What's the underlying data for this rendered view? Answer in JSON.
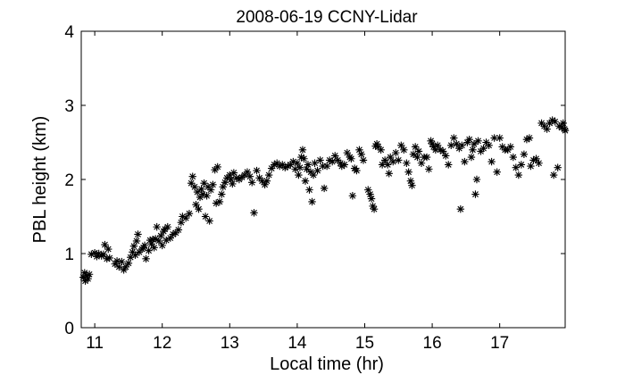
{
  "chart_data": {
    "type": "scatter",
    "title": "2008-06-19 CCNY-Lidar",
    "xlabel": "Local time (hr)",
    "ylabel": "PBL height (km)",
    "xlim": [
      10.8,
      17.97
    ],
    "ylim": [
      0,
      4
    ],
    "xticks": [
      11,
      12,
      13,
      14,
      15,
      16,
      17
    ],
    "yticks": [
      0,
      1,
      2,
      3,
      4
    ],
    "grid": false,
    "marker": "asterisk",
    "marker_color": "#000000",
    "points": [
      [
        10.83,
        0.68
      ],
      [
        10.85,
        0.74
      ],
      [
        10.86,
        0.63
      ],
      [
        10.88,
        0.7
      ],
      [
        10.9,
        0.66
      ],
      [
        10.92,
        0.72
      ],
      [
        10.95,
        0.99
      ],
      [
        11.0,
        1.01
      ],
      [
        11.03,
        0.96
      ],
      [
        11.06,
        1.0
      ],
      [
        11.1,
        0.97
      ],
      [
        11.13,
        0.99
      ],
      [
        11.15,
        1.12
      ],
      [
        11.18,
        0.93
      ],
      [
        11.2,
        1.06
      ],
      [
        11.22,
        0.94
      ],
      [
        11.3,
        0.86
      ],
      [
        11.33,
        0.9
      ],
      [
        11.36,
        0.82
      ],
      [
        11.4,
        0.89
      ],
      [
        11.43,
        0.78
      ],
      [
        11.46,
        0.82
      ],
      [
        11.5,
        0.87
      ],
      [
        11.53,
        0.95
      ],
      [
        11.56,
        1.02
      ],
      [
        11.58,
        1.1
      ],
      [
        11.6,
        0.98
      ],
      [
        11.62,
        1.17
      ],
      [
        11.64,
        1.26
      ],
      [
        11.66,
        1.02
      ],
      [
        11.7,
        1.06
      ],
      [
        11.72,
        1.08
      ],
      [
        11.74,
        1.11
      ],
      [
        11.76,
        0.93
      ],
      [
        11.8,
        1.04
      ],
      [
        11.82,
        1.18
      ],
      [
        11.84,
        1.13
      ],
      [
        11.86,
        1.19
      ],
      [
        11.88,
        1.08
      ],
      [
        11.9,
        1.2
      ],
      [
        11.92,
        1.36
      ],
      [
        11.95,
        1.17
      ],
      [
        11.98,
        1.24
      ],
      [
        12.0,
        1.11
      ],
      [
        12.02,
        1.3
      ],
      [
        12.04,
        1.33
      ],
      [
        12.06,
        1.18
      ],
      [
        12.08,
        1.36
      ],
      [
        12.12,
        1.21
      ],
      [
        12.16,
        1.26
      ],
      [
        12.2,
        1.28
      ],
      [
        12.24,
        1.32
      ],
      [
        12.28,
        1.42
      ],
      [
        12.3,
        1.5
      ],
      [
        12.35,
        1.48
      ],
      [
        12.4,
        1.54
      ],
      [
        12.43,
        1.95
      ],
      [
        12.45,
        2.04
      ],
      [
        12.48,
        1.9
      ],
      [
        12.5,
        1.66
      ],
      [
        12.52,
        1.83
      ],
      [
        12.54,
        1.6
      ],
      [
        12.56,
        1.76
      ],
      [
        12.58,
        1.87
      ],
      [
        12.6,
        1.8
      ],
      [
        12.62,
        1.95
      ],
      [
        12.64,
        1.5
      ],
      [
        12.66,
        1.78
      ],
      [
        12.68,
        1.9
      ],
      [
        12.7,
        1.44
      ],
      [
        12.72,
        1.86
      ],
      [
        12.75,
        1.93
      ],
      [
        12.78,
        2.13
      ],
      [
        12.8,
        1.68
      ],
      [
        12.82,
        2.17
      ],
      [
        12.85,
        1.7
      ],
      [
        12.88,
        1.8
      ],
      [
        12.9,
        1.9
      ],
      [
        12.93,
        1.96
      ],
      [
        12.96,
        2.02
      ],
      [
        13.0,
        2.06
      ],
      [
        13.02,
        2.0
      ],
      [
        13.04,
        1.94
      ],
      [
        13.06,
        2.09
      ],
      [
        13.1,
        2.02
      ],
      [
        13.14,
        2.0
      ],
      [
        13.18,
        2.03
      ],
      [
        13.22,
        2.06
      ],
      [
        13.26,
        2.1
      ],
      [
        13.3,
        2.04
      ],
      [
        13.33,
        1.96
      ],
      [
        13.36,
        1.55
      ],
      [
        13.4,
        2.12
      ],
      [
        13.44,
        2.02
      ],
      [
        13.48,
        1.98
      ],
      [
        13.52,
        1.93
      ],
      [
        13.55,
        1.98
      ],
      [
        13.58,
        2.06
      ],
      [
        13.62,
        2.15
      ],
      [
        13.66,
        2.2
      ],
      [
        13.7,
        2.22
      ],
      [
        13.74,
        2.18
      ],
      [
        13.78,
        2.2
      ],
      [
        13.82,
        2.16
      ],
      [
        13.86,
        2.18
      ],
      [
        13.9,
        2.2
      ],
      [
        13.94,
        2.24
      ],
      [
        13.97,
        2.14
      ],
      [
        14.0,
        2.22
      ],
      [
        14.02,
        2.06
      ],
      [
        14.04,
        2.16
      ],
      [
        14.06,
        2.3
      ],
      [
        14.08,
        2.4
      ],
      [
        14.1,
        2.28
      ],
      [
        14.12,
        1.98
      ],
      [
        14.14,
        2.14
      ],
      [
        14.16,
        2.2
      ],
      [
        14.18,
        1.86
      ],
      [
        14.2,
        2.1
      ],
      [
        14.22,
        1.7
      ],
      [
        14.24,
        2.06
      ],
      [
        14.26,
        2.22
      ],
      [
        14.3,
        2.12
      ],
      [
        14.34,
        2.26
      ],
      [
        14.38,
        2.18
      ],
      [
        14.4,
        1.88
      ],
      [
        14.44,
        2.18
      ],
      [
        14.48,
        2.26
      ],
      [
        14.52,
        2.24
      ],
      [
        14.56,
        2.32
      ],
      [
        14.6,
        2.26
      ],
      [
        14.64,
        2.22
      ],
      [
        14.66,
        2.18
      ],
      [
        14.7,
        2.2
      ],
      [
        14.74,
        2.36
      ],
      [
        14.78,
        2.3
      ],
      [
        14.8,
        2.28
      ],
      [
        14.82,
        1.78
      ],
      [
        14.85,
        2.15
      ],
      [
        14.88,
        2.12
      ],
      [
        14.92,
        2.4
      ],
      [
        14.95,
        2.34
      ],
      [
        14.98,
        2.26
      ],
      [
        15.05,
        1.86
      ],
      [
        15.08,
        1.8
      ],
      [
        15.1,
        1.74
      ],
      [
        15.12,
        1.64
      ],
      [
        15.14,
        1.6
      ],
      [
        15.16,
        2.45
      ],
      [
        15.18,
        2.48
      ],
      [
        15.2,
        2.44
      ],
      [
        15.24,
        2.4
      ],
      [
        15.26,
        2.2
      ],
      [
        15.3,
        2.26
      ],
      [
        15.34,
        2.2
      ],
      [
        15.36,
        2.08
      ],
      [
        15.38,
        2.3
      ],
      [
        15.42,
        2.24
      ],
      [
        15.46,
        2.36
      ],
      [
        15.5,
        2.26
      ],
      [
        15.54,
        2.46
      ],
      [
        15.58,
        2.4
      ],
      [
        15.62,
        2.22
      ],
      [
        15.65,
        2.1
      ],
      [
        15.68,
        1.98
      ],
      [
        15.7,
        1.92
      ],
      [
        15.72,
        2.34
      ],
      [
        15.75,
        2.44
      ],
      [
        15.78,
        2.3
      ],
      [
        15.8,
        2.38
      ],
      [
        15.84,
        2.22
      ],
      [
        15.88,
        2.3
      ],
      [
        15.92,
        2.3
      ],
      [
        15.95,
        2.14
      ],
      [
        15.98,
        2.52
      ],
      [
        16.0,
        2.48
      ],
      [
        16.02,
        2.44
      ],
      [
        16.05,
        2.4
      ],
      [
        16.08,
        2.46
      ],
      [
        16.12,
        2.4
      ],
      [
        16.16,
        2.38
      ],
      [
        16.2,
        2.32
      ],
      [
        16.24,
        2.2
      ],
      [
        16.28,
        2.46
      ],
      [
        16.32,
        2.56
      ],
      [
        16.36,
        2.48
      ],
      [
        16.4,
        2.42
      ],
      [
        16.42,
        1.6
      ],
      [
        16.44,
        2.46
      ],
      [
        16.48,
        2.24
      ],
      [
        16.52,
        2.5
      ],
      [
        16.55,
        2.54
      ],
      [
        16.58,
        2.3
      ],
      [
        16.6,
        2.4
      ],
      [
        16.62,
        2.48
      ],
      [
        16.64,
        1.8
      ],
      [
        16.66,
        2.0
      ],
      [
        16.68,
        2.52
      ],
      [
        16.72,
        2.38
      ],
      [
        16.76,
        2.42
      ],
      [
        16.8,
        2.5
      ],
      [
        16.84,
        2.46
      ],
      [
        16.88,
        2.24
      ],
      [
        16.92,
        2.56
      ],
      [
        16.96,
        2.1
      ],
      [
        17.0,
        2.56
      ],
      [
        17.04,
        2.44
      ],
      [
        17.08,
        2.4
      ],
      [
        17.12,
        2.4
      ],
      [
        17.16,
        2.44
      ],
      [
        17.2,
        2.3
      ],
      [
        17.24,
        2.16
      ],
      [
        17.28,
        2.06
      ],
      [
        17.32,
        2.2
      ],
      [
        17.36,
        2.34
      ],
      [
        17.4,
        2.54
      ],
      [
        17.44,
        2.56
      ],
      [
        17.46,
        2.18
      ],
      [
        17.5,
        2.26
      ],
      [
        17.54,
        2.28
      ],
      [
        17.58,
        2.22
      ],
      [
        17.62,
        2.76
      ],
      [
        17.66,
        2.72
      ],
      [
        17.7,
        2.68
      ],
      [
        17.74,
        2.76
      ],
      [
        17.78,
        2.8
      ],
      [
        17.8,
        2.06
      ],
      [
        17.82,
        2.78
      ],
      [
        17.86,
        2.16
      ],
      [
        17.88,
        2.72
      ],
      [
        17.92,
        2.7
      ],
      [
        17.94,
        2.76
      ],
      [
        17.96,
        2.68
      ],
      [
        17.97,
        2.66
      ]
    ]
  }
}
